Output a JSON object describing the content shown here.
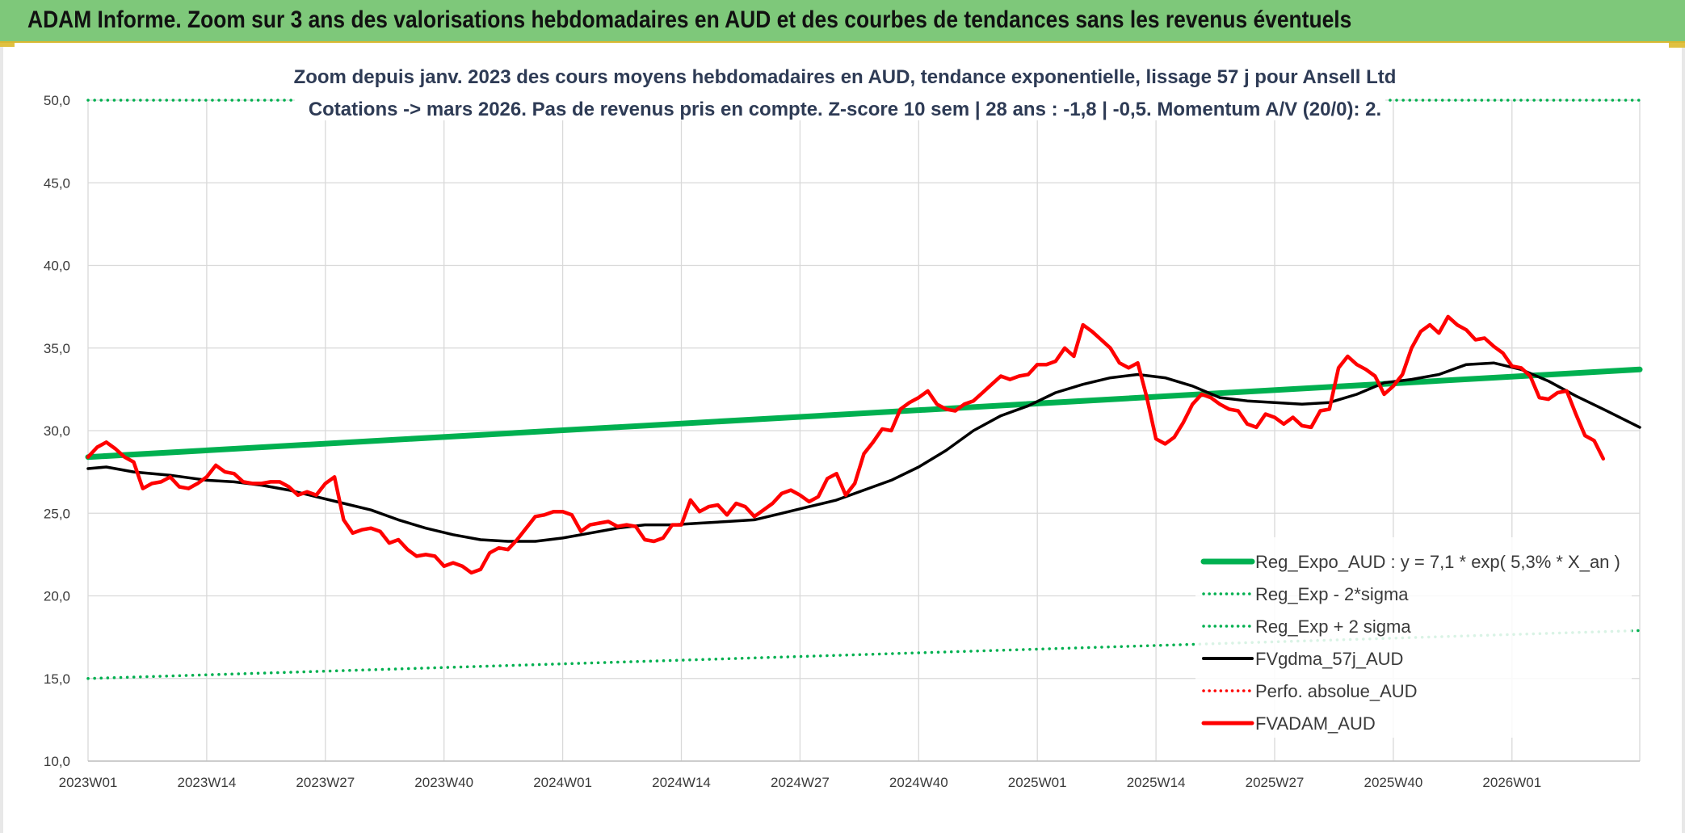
{
  "header": {
    "title": "ADAM Informe. Zoom sur 3 ans des valorisations hebdomadaires en AUD et des courbes de tendances sans les revenus éventuels"
  },
  "colors": {
    "green": "#00b050",
    "black": "#000000",
    "red": "#ff0000",
    "grid": "#d9d9d9",
    "title_bar": "#7ec87a"
  },
  "chart_data": {
    "type": "line",
    "subtitle_lines": [
      "Zoom depuis janv. 2023 des cours moyens hebdomadaires en AUD, tendance exponentielle, lissage 57 j pour Ansell Ltd",
      "Cotations -> mars 2026. Pas de revenus pris en compte. Z-score 10 sem | 28 ans : -1,8 | -0,5. Momentum A/V (20/0): 2."
    ],
    "xlabel": "",
    "ylabel": "",
    "ylim": [
      10,
      50
    ],
    "y_ticks": [
      "10,0",
      "15,0",
      "20,0",
      "25,0",
      "30,0",
      "35,0",
      "40,0",
      "45,0",
      "50,0"
    ],
    "x_tick_labels": [
      "2023W01",
      "2023W14",
      "2023W27",
      "2023W40",
      "2024W01",
      "2024W14",
      "2024W27",
      "2024W40",
      "2025W01",
      "2025W14",
      "2025W27",
      "2025W40",
      "2026W01"
    ],
    "x_tick_index": [
      0,
      13,
      26,
      39,
      52,
      65,
      78,
      91,
      104,
      117,
      130,
      143,
      156
    ],
    "x_count": 171,
    "grid": true,
    "legend_position": "bottom-right",
    "series": [
      {
        "name": "Reg_Expo_AUD : y = 7,1 * exp( 5,3% *  X_an )",
        "style": "solid-thick",
        "color": "#00b050",
        "points": [
          [
            0,
            28.4
          ],
          [
            170,
            33.7
          ]
        ]
      },
      {
        "name": "Reg_Exp - 2*sigma",
        "style": "dotted",
        "color": "#00b050",
        "points": [
          [
            0,
            15.0
          ],
          [
            170,
            17.9
          ]
        ]
      },
      {
        "name": "Reg_Exp + 2 sigma",
        "style": "dotted",
        "color": "#00b050",
        "points": [
          [
            0,
            50.0
          ],
          [
            170,
            50.0
          ]
        ]
      },
      {
        "name": "FVgdma_57j_AUD",
        "style": "solid",
        "color": "#000000",
        "points": [
          [
            0,
            27.7
          ],
          [
            2,
            27.8
          ],
          [
            5,
            27.5
          ],
          [
            9,
            27.3
          ],
          [
            13,
            27.0
          ],
          [
            16,
            26.9
          ],
          [
            19,
            26.7
          ],
          [
            22,
            26.4
          ],
          [
            25,
            26.0
          ],
          [
            28,
            25.6
          ],
          [
            31,
            25.2
          ],
          [
            34,
            24.6
          ],
          [
            37,
            24.1
          ],
          [
            40,
            23.7
          ],
          [
            43,
            23.4
          ],
          [
            46,
            23.3
          ],
          [
            49,
            23.3
          ],
          [
            52,
            23.5
          ],
          [
            55,
            23.8
          ],
          [
            58,
            24.1
          ],
          [
            61,
            24.3
          ],
          [
            64,
            24.3
          ],
          [
            67,
            24.4
          ],
          [
            70,
            24.5
          ],
          [
            73,
            24.6
          ],
          [
            76,
            25.0
          ],
          [
            79,
            25.4
          ],
          [
            82,
            25.8
          ],
          [
            85,
            26.4
          ],
          [
            88,
            27.0
          ],
          [
            91,
            27.8
          ],
          [
            94,
            28.8
          ],
          [
            97,
            30.0
          ],
          [
            100,
            30.9
          ],
          [
            103,
            31.5
          ],
          [
            106,
            32.3
          ],
          [
            109,
            32.8
          ],
          [
            112,
            33.2
          ],
          [
            115,
            33.4
          ],
          [
            118,
            33.2
          ],
          [
            121,
            32.7
          ],
          [
            124,
            32.0
          ],
          [
            127,
            31.8
          ],
          [
            130,
            31.7
          ],
          [
            133,
            31.6
          ],
          [
            136,
            31.7
          ],
          [
            139,
            32.2
          ],
          [
            142,
            32.9
          ],
          [
            145,
            33.1
          ],
          [
            148,
            33.4
          ],
          [
            151,
            34.0
          ],
          [
            154,
            34.1
          ],
          [
            157,
            33.7
          ],
          [
            160,
            33.0
          ],
          [
            163,
            32.1
          ],
          [
            166,
            31.3
          ],
          [
            170,
            30.2
          ]
        ]
      },
      {
        "name": "Perfo. absolue_AUD",
        "style": "dotted",
        "color": "#ff0000",
        "points": []
      },
      {
        "name": "FVADAM_AUD",
        "style": "solid-thick",
        "color": "#ff0000",
        "points": [
          [
            0,
            28.4
          ],
          [
            1,
            29.0
          ],
          [
            2,
            29.3
          ],
          [
            3,
            28.9
          ],
          [
            4,
            28.4
          ],
          [
            5,
            28.1
          ],
          [
            6,
            26.5
          ],
          [
            7,
            26.8
          ],
          [
            8,
            26.9
          ],
          [
            9,
            27.2
          ],
          [
            10,
            26.6
          ],
          [
            11,
            26.5
          ],
          [
            12,
            26.8
          ],
          [
            13,
            27.2
          ],
          [
            14,
            27.9
          ],
          [
            15,
            27.5
          ],
          [
            16,
            27.4
          ],
          [
            17,
            26.9
          ],
          [
            18,
            26.8
          ],
          [
            19,
            26.8
          ],
          [
            20,
            26.9
          ],
          [
            21,
            26.9
          ],
          [
            22,
            26.6
          ],
          [
            23,
            26.1
          ],
          [
            24,
            26.3
          ],
          [
            25,
            26.1
          ],
          [
            26,
            26.8
          ],
          [
            27,
            27.2
          ],
          [
            28,
            24.6
          ],
          [
            29,
            23.8
          ],
          [
            30,
            24.0
          ],
          [
            31,
            24.1
          ],
          [
            32,
            23.9
          ],
          [
            33,
            23.2
          ],
          [
            34,
            23.4
          ],
          [
            35,
            22.8
          ],
          [
            36,
            22.4
          ],
          [
            37,
            22.5
          ],
          [
            38,
            22.4
          ],
          [
            39,
            21.8
          ],
          [
            40,
            22.0
          ],
          [
            41,
            21.8
          ],
          [
            42,
            21.4
          ],
          [
            43,
            21.6
          ],
          [
            44,
            22.6
          ],
          [
            45,
            22.9
          ],
          [
            46,
            22.8
          ],
          [
            47,
            23.4
          ],
          [
            48,
            24.1
          ],
          [
            49,
            24.8
          ],
          [
            50,
            24.9
          ],
          [
            51,
            25.1
          ],
          [
            52,
            25.1
          ],
          [
            53,
            24.9
          ],
          [
            54,
            23.9
          ],
          [
            55,
            24.3
          ],
          [
            56,
            24.4
          ],
          [
            57,
            24.5
          ],
          [
            58,
            24.2
          ],
          [
            59,
            24.3
          ],
          [
            60,
            24.2
          ],
          [
            61,
            23.4
          ],
          [
            62,
            23.3
          ],
          [
            63,
            23.5
          ],
          [
            64,
            24.3
          ],
          [
            65,
            24.3
          ],
          [
            66,
            25.8
          ],
          [
            67,
            25.1
          ],
          [
            68,
            25.4
          ],
          [
            69,
            25.5
          ],
          [
            70,
            24.9
          ],
          [
            71,
            25.6
          ],
          [
            72,
            25.4
          ],
          [
            73,
            24.8
          ],
          [
            74,
            25.2
          ],
          [
            75,
            25.6
          ],
          [
            76,
            26.2
          ],
          [
            77,
            26.4
          ],
          [
            78,
            26.1
          ],
          [
            79,
            25.7
          ],
          [
            80,
            26.0
          ],
          [
            81,
            27.1
          ],
          [
            82,
            27.4
          ],
          [
            83,
            26.1
          ],
          [
            84,
            26.8
          ],
          [
            85,
            28.6
          ],
          [
            86,
            29.3
          ],
          [
            87,
            30.1
          ],
          [
            88,
            30.0
          ],
          [
            89,
            31.3
          ],
          [
            90,
            31.7
          ],
          [
            91,
            32.0
          ],
          [
            92,
            32.4
          ],
          [
            93,
            31.6
          ],
          [
            94,
            31.3
          ],
          [
            95,
            31.2
          ],
          [
            96,
            31.6
          ],
          [
            97,
            31.8
          ],
          [
            98,
            32.3
          ],
          [
            99,
            32.8
          ],
          [
            100,
            33.3
          ],
          [
            101,
            33.1
          ],
          [
            102,
            33.3
          ],
          [
            103,
            33.4
          ],
          [
            104,
            34.0
          ],
          [
            105,
            34.0
          ],
          [
            106,
            34.2
          ],
          [
            107,
            35.0
          ],
          [
            108,
            34.5
          ],
          [
            109,
            36.4
          ],
          [
            110,
            36.0
          ],
          [
            111,
            35.5
          ],
          [
            112,
            35.0
          ],
          [
            113,
            34.1
          ],
          [
            114,
            33.8
          ],
          [
            115,
            34.1
          ],
          [
            116,
            32.0
          ],
          [
            117,
            29.5
          ],
          [
            118,
            29.2
          ],
          [
            119,
            29.6
          ],
          [
            120,
            30.5
          ],
          [
            121,
            31.6
          ],
          [
            122,
            32.2
          ],
          [
            123,
            32.0
          ],
          [
            124,
            31.6
          ],
          [
            125,
            31.3
          ],
          [
            126,
            31.2
          ],
          [
            127,
            30.4
          ],
          [
            128,
            30.2
          ],
          [
            129,
            31.0
          ],
          [
            130,
            30.8
          ],
          [
            131,
            30.4
          ],
          [
            132,
            30.8
          ],
          [
            133,
            30.3
          ],
          [
            134,
            30.2
          ],
          [
            135,
            31.2
          ],
          [
            136,
            31.3
          ],
          [
            137,
            33.8
          ],
          [
            138,
            34.5
          ],
          [
            139,
            34.0
          ],
          [
            140,
            33.7
          ],
          [
            141,
            33.3
          ],
          [
            142,
            32.2
          ],
          [
            143,
            32.7
          ],
          [
            144,
            33.4
          ],
          [
            145,
            35.0
          ],
          [
            146,
            36.0
          ],
          [
            147,
            36.4
          ],
          [
            148,
            35.9
          ],
          [
            149,
            36.9
          ],
          [
            150,
            36.4
          ],
          [
            151,
            36.1
          ],
          [
            152,
            35.5
          ],
          [
            153,
            35.6
          ],
          [
            154,
            35.1
          ],
          [
            155,
            34.7
          ],
          [
            156,
            33.9
          ],
          [
            157,
            33.8
          ],
          [
            158,
            33.3
          ],
          [
            159,
            32.0
          ],
          [
            160,
            31.9
          ],
          [
            161,
            32.3
          ],
          [
            162,
            32.4
          ],
          [
            163,
            31.0
          ],
          [
            164,
            29.7
          ],
          [
            165,
            29.4
          ],
          [
            166,
            28.3
          ]
        ]
      }
    ]
  }
}
